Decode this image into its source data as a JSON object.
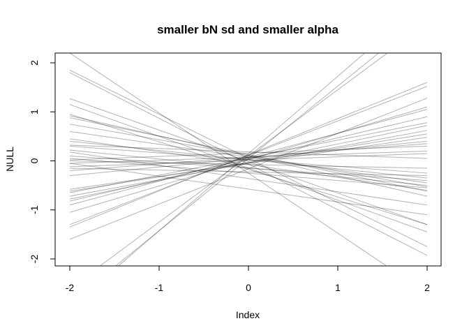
{
  "chart_data": {
    "type": "line",
    "title": "smaller bN sd and smaller alpha",
    "xlabel": "Index",
    "ylabel": "NULL",
    "xlim": [
      -2,
      2
    ],
    "ylim": [
      -2,
      2
    ],
    "x_ticks": [
      "-2",
      "-1",
      "0",
      "1",
      "2"
    ],
    "y_ticks": [
      "-2",
      "-1",
      "0",
      "1",
      "2"
    ],
    "grid": false,
    "legend": "none",
    "line_color": "#000000",
    "line_opacity": 0.3,
    "series": [
      {
        "x": [
          -2,
          2
        ],
        "y": [
          2.2,
          -2.7
        ]
      },
      {
        "x": [
          -2,
          2
        ],
        "y": [
          -3.0,
          3.3
        ]
      },
      {
        "x": [
          -2,
          2
        ],
        "y": [
          -2.9,
          3.0
        ]
      },
      {
        "x": [
          -2,
          2
        ],
        "y": [
          -2.6,
          2.8
        ]
      },
      {
        "x": [
          -2,
          2
        ],
        "y": [
          1.85,
          -1.75
        ]
      },
      {
        "x": [
          -2,
          2
        ],
        "y": [
          1.8,
          -1.93
        ]
      },
      {
        "x": [
          -2,
          2
        ],
        "y": [
          1.27,
          -1.3
        ]
      },
      {
        "x": [
          -2,
          2
        ],
        "y": [
          1.15,
          -1.45
        ]
      },
      {
        "x": [
          -2,
          2
        ],
        "y": [
          0.95,
          -1.3
        ]
      },
      {
        "x": [
          -2,
          2
        ],
        "y": [
          0.92,
          -0.72
        ]
      },
      {
        "x": [
          -2,
          2
        ],
        "y": [
          0.88,
          -0.62
        ]
      },
      {
        "x": [
          -2,
          2
        ],
        "y": [
          0.75,
          -0.53
        ]
      },
      {
        "x": [
          -2,
          2
        ],
        "y": [
          0.6,
          -0.45
        ]
      },
      {
        "x": [
          -2,
          2
        ],
        "y": [
          0.45,
          -0.6
        ]
      },
      {
        "x": [
          -2,
          2
        ],
        "y": [
          0.4,
          -0.35
        ]
      },
      {
        "x": [
          -2,
          2
        ],
        "y": [
          0.3,
          -0.25
        ]
      },
      {
        "x": [
          -2,
          2
        ],
        "y": [
          0.22,
          -0.5
        ]
      },
      {
        "x": [
          -2,
          2
        ],
        "y": [
          0.18,
          -0.9
        ]
      },
      {
        "x": [
          -2,
          2
        ],
        "y": [
          0.1,
          -0.4
        ]
      },
      {
        "x": [
          -2,
          2
        ],
        "y": [
          0.05,
          -0.55
        ]
      },
      {
        "x": [
          -2,
          2
        ],
        "y": [
          0.0,
          -0.15
        ]
      },
      {
        "x": [
          -2,
          2
        ],
        "y": [
          -0.05,
          0.2
        ]
      },
      {
        "x": [
          -2,
          2
        ],
        "y": [
          -0.12,
          0.15
        ]
      },
      {
        "x": [
          -2,
          2
        ],
        "y": [
          -0.2,
          0.35
        ]
      },
      {
        "x": [
          -2,
          2
        ],
        "y": [
          -0.3,
          0.4
        ]
      },
      {
        "x": [
          -2,
          2
        ],
        "y": [
          -0.58,
          0.48
        ]
      },
      {
        "x": [
          -2,
          2
        ],
        "y": [
          -0.62,
          0.55
        ]
      },
      {
        "x": [
          -2,
          2
        ],
        "y": [
          -0.65,
          0.78
        ]
      },
      {
        "x": [
          -2,
          2
        ],
        "y": [
          -0.72,
          0.62
        ]
      },
      {
        "x": [
          -2,
          2
        ],
        "y": [
          -0.78,
          0.72
        ]
      },
      {
        "x": [
          -2,
          2
        ],
        "y": [
          -0.82,
          0.9
        ]
      },
      {
        "x": [
          -2,
          2
        ],
        "y": [
          -0.9,
          1.05
        ]
      },
      {
        "x": [
          -2,
          2
        ],
        "y": [
          -1.05,
          1.1
        ]
      },
      {
        "x": [
          -2,
          2
        ],
        "y": [
          -1.3,
          1.52
        ]
      },
      {
        "x": [
          -2,
          2
        ],
        "y": [
          -1.35,
          1.6
        ]
      },
      {
        "x": [
          -2,
          2
        ],
        "y": [
          -1.6,
          1.28
        ]
      },
      {
        "x": [
          -2,
          2
        ],
        "y": [
          0.32,
          0.05
        ]
      },
      {
        "x": [
          -2,
          2
        ],
        "y": [
          -0.15,
          -0.3
        ]
      },
      {
        "x": [
          -2,
          2
        ],
        "y": [
          0.02,
          0.3
        ]
      },
      {
        "x": [
          -2,
          2
        ],
        "y": [
          -0.05,
          -1.1
        ]
      }
    ]
  }
}
